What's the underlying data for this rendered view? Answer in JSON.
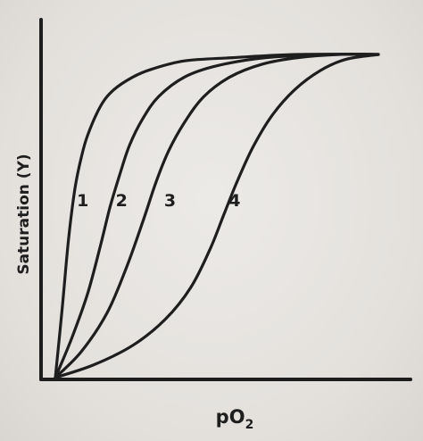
{
  "chart_data": {
    "type": "line",
    "title": "",
    "xlabel": "pO",
    "xlabel_subscript": "2",
    "ylabel": "Saturation (Y)",
    "xlim": [
      0,
      100
    ],
    "ylim": [
      0,
      1
    ],
    "ticks": "none",
    "grid": false,
    "legend": "none",
    "series": [
      {
        "name": "1",
        "x": [
          0,
          2,
          4,
          6,
          8,
          10,
          14,
          18,
          24,
          30,
          40,
          55,
          75,
          100
        ],
        "y": [
          0,
          0.2,
          0.42,
          0.58,
          0.68,
          0.75,
          0.84,
          0.89,
          0.93,
          0.955,
          0.98,
          0.99,
          1.0,
          1.0
        ]
      },
      {
        "name": "2",
        "x": [
          0,
          5,
          10,
          14,
          17,
          20,
          23,
          27,
          32,
          40,
          50,
          65,
          85,
          100
        ],
        "y": [
          0,
          0.12,
          0.26,
          0.41,
          0.53,
          0.63,
          0.72,
          0.8,
          0.87,
          0.93,
          0.965,
          0.99,
          1.0,
          1.0
        ]
      },
      {
        "name": "3",
        "x": [
          0,
          8,
          16,
          22,
          27,
          31,
          35,
          40,
          46,
          54,
          64,
          75,
          88,
          100
        ],
        "y": [
          0,
          0.08,
          0.2,
          0.34,
          0.48,
          0.6,
          0.7,
          0.79,
          0.87,
          0.93,
          0.97,
          0.99,
          1.0,
          1.0
        ]
      },
      {
        "name": "4",
        "x": [
          0,
          12,
          24,
          34,
          42,
          48,
          52,
          56,
          61,
          67,
          74,
          82,
          90,
          100
        ],
        "y": [
          0,
          0.04,
          0.1,
          0.18,
          0.28,
          0.4,
          0.5,
          0.6,
          0.71,
          0.81,
          0.89,
          0.95,
          0.985,
          1.0
        ]
      }
    ],
    "curve_labels": [
      {
        "text": "1",
        "x": 8.5,
        "y": 0.53
      },
      {
        "text": "2",
        "x": 20.5,
        "y": 0.53
      },
      {
        "text": "3",
        "x": 35.5,
        "y": 0.53
      },
      {
        "text": "4",
        "x": 55.5,
        "y": 0.53
      }
    ]
  }
}
